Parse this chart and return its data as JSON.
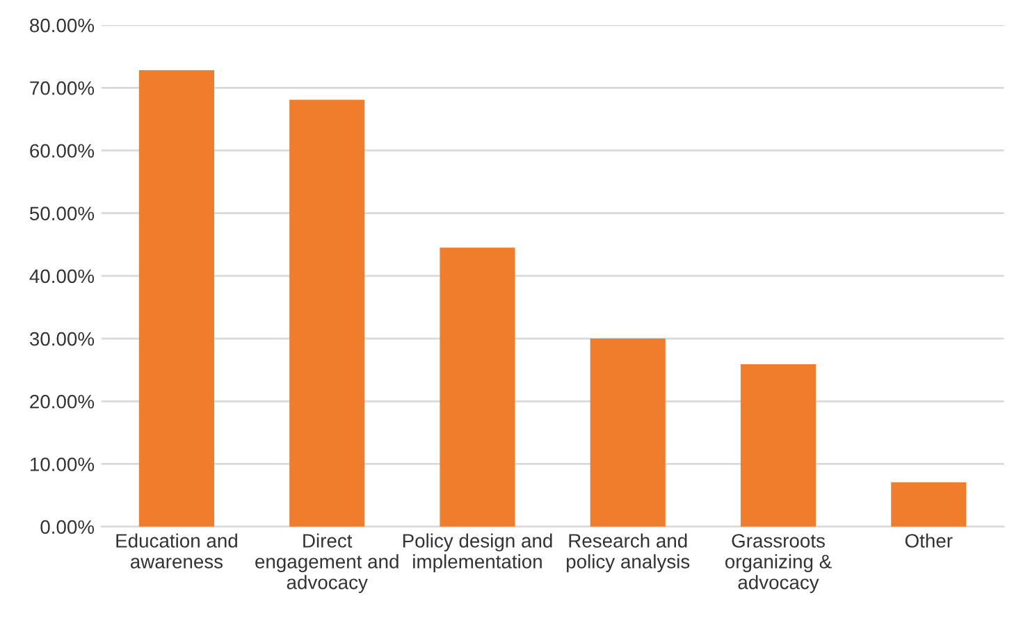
{
  "chart_data": {
    "type": "bar",
    "categories": [
      "Education and\nawareness",
      "Direct\nengagement and\nadvocacy",
      "Policy design and\nimplementation",
      "Research and\npolicy analysis",
      "Grassroots\norganizing &\nadvocacy",
      "Other"
    ],
    "values": [
      72.8,
      68.1,
      44.5,
      30.0,
      25.9,
      7.1
    ],
    "color": "#f07d2c",
    "ylim": [
      0,
      80
    ],
    "yticks": [
      {
        "value": 0,
        "label": "0.00%"
      },
      {
        "value": 10,
        "label": "10.00%"
      },
      {
        "value": 20,
        "label": "20.00%"
      },
      {
        "value": 30,
        "label": "30.00%"
      },
      {
        "value": 40,
        "label": "40.00%"
      },
      {
        "value": 50,
        "label": "50.00%"
      },
      {
        "value": 60,
        "label": "60.00%"
      },
      {
        "value": 70,
        "label": "70.00%"
      },
      {
        "value": 80,
        "label": "80.00%"
      }
    ],
    "grid": "y"
  }
}
